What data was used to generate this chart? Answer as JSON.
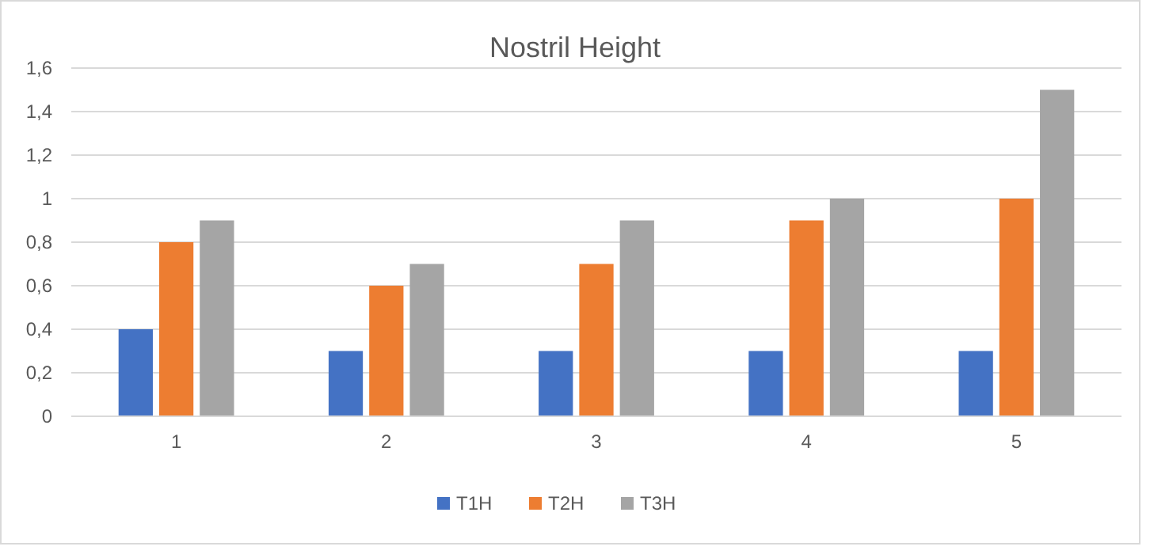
{
  "chart_data": {
    "type": "bar",
    "title": "Nostril Height",
    "categories": [
      "1",
      "2",
      "3",
      "4",
      "5"
    ],
    "series": [
      {
        "name": "T1H",
        "color": "#4472c4",
        "values": [
          0.4,
          0.3,
          0.3,
          0.3,
          0.3
        ]
      },
      {
        "name": "T2H",
        "color": "#ed7d31",
        "values": [
          0.8,
          0.6,
          0.7,
          0.9,
          1.0
        ]
      },
      {
        "name": "T3H",
        "color": "#a5a5a5",
        "values": [
          0.9,
          0.7,
          0.9,
          1.0,
          1.5
        ]
      }
    ],
    "ylim": [
      0,
      1.6
    ],
    "yticks": [
      0,
      {
        "value": 0.2,
        "label": "0,2"
      },
      {
        "value": 0.4,
        "label": "0,4"
      },
      {
        "value": 0.6,
        "label": "0,6"
      },
      {
        "value": 0.8,
        "label": "0,8"
      },
      1,
      {
        "value": 1.2,
        "label": "1,2"
      },
      {
        "value": 1.4,
        "label": "1,4"
      },
      {
        "value": 1.6,
        "label": "1,6"
      }
    ],
    "grid": "y",
    "legend": "bottom"
  }
}
